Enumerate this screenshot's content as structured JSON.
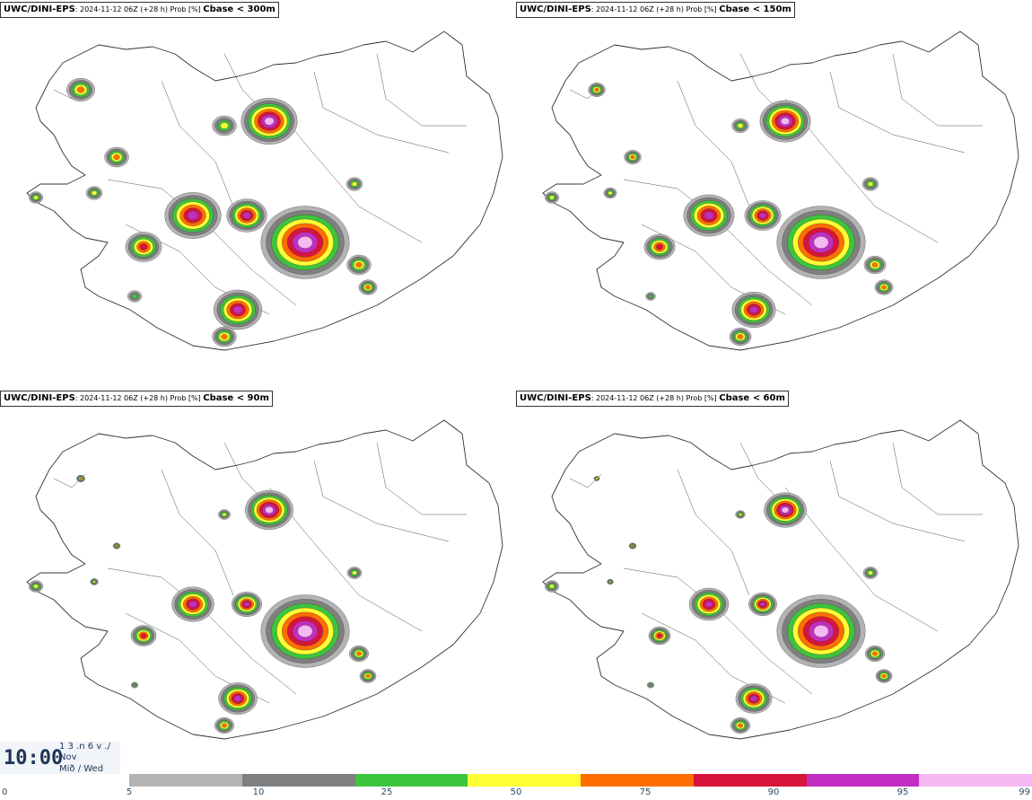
{
  "map": {
    "panels": [
      {
        "model": "UWC/DINI-EPS",
        "meta": ": 2024-11-12 06Z (+28 h) Prob [%] ",
        "threshold": "Cbase < 300m",
        "level": 300
      },
      {
        "model": "UWC/DINI-EPS",
        "meta": ": 2024-11-12 06Z (+28 h) Prob [%] ",
        "threshold": "Cbase < 150m",
        "level": 150
      },
      {
        "model": "UWC/DINI-EPS",
        "meta": ": 2024-11-12 06Z (+28 h) Prob [%] ",
        "threshold": "Cbase < 90m",
        "level": 90
      },
      {
        "model": "UWC/DINI-EPS",
        "meta": ": 2024-11-12 06Z (+28 h) Prob [%] ",
        "threshold": "Cbase < 60m",
        "level": 60
      }
    ]
  },
  "time": {
    "clock": "10:00",
    "line1": "1 3 .n 6 v ./",
    "line2": "Nov",
    "line3": "Mið / Wed"
  },
  "legend": {
    "colors": [
      "#b3b3b3",
      "#7f7f7f",
      "#3dc43d",
      "#ffff33",
      "#ff6f00",
      "#d7143c",
      "#c12ec1",
      "#f5b8f2"
    ],
    "ticks": [
      "0",
      "5",
      "10",
      "25",
      "50",
      "75",
      "90",
      "95",
      "99"
    ]
  }
}
